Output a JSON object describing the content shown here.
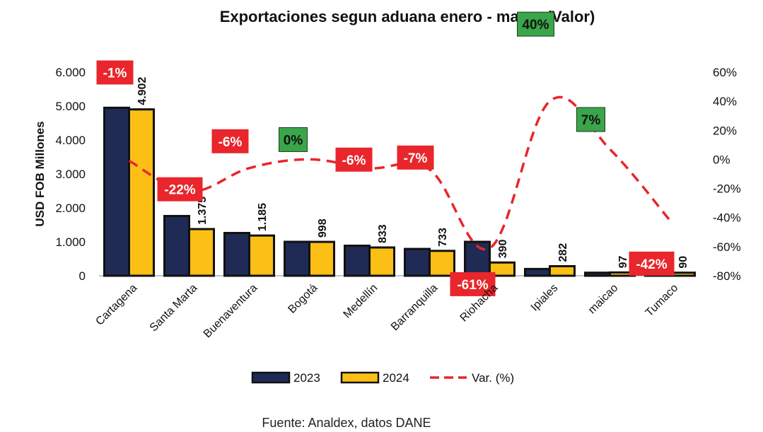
{
  "chart_data": {
    "type": "bar",
    "title": "Exportaciones segun aduana enero - marzo (Valor)",
    "ylabel": "USD FOB Millones",
    "ylim": [
      0,
      6000
    ],
    "y_ticks": [
      "0",
      "1.000",
      "2.000",
      "3.000",
      "4.000",
      "5.000",
      "6.000"
    ],
    "y2lim": [
      -80,
      60
    ],
    "y2_ticks": [
      "-80%",
      "-60%",
      "-40%",
      "-20%",
      "0%",
      "20%",
      "40%",
      "60%"
    ],
    "categories": [
      "Cartagena",
      "Santa Marta",
      "Buenaventura",
      "Bogotá",
      "Medellín",
      "Barranquilla",
      "Riohacha",
      "Ipiales",
      "maicao",
      "Tumaco"
    ],
    "series": [
      {
        "name": "2023",
        "color": "#1f2a55",
        "values": [
          4950,
          1760,
          1260,
          1000,
          885,
          790,
          1000,
          200,
          90,
          155
        ]
      },
      {
        "name": "2024",
        "color": "#fcbf16",
        "values": [
          4902,
          1375,
          1185,
          998,
          833,
          733,
          390,
          282,
          97,
          90
        ],
        "labels": [
          "4.902",
          "1.375",
          "1.185",
          "998",
          "833",
          "733",
          "390",
          "282",
          "97",
          "90"
        ]
      },
      {
        "name": "Var. (%)",
        "type": "line",
        "axis": "secondary",
        "color": "#e8262b",
        "values": [
          -1,
          -22,
          -6,
          0,
          -6,
          -7,
          -61,
          40,
          7,
          -42
        ],
        "labels": [
          "-1%",
          "-22%",
          "-6%",
          "0%",
          "-6%",
          "-7%",
          "-61%",
          "40%",
          "7%",
          "-42%"
        ]
      }
    ],
    "legend": [
      "2023",
      "2024",
      "Var. (%)"
    ],
    "legend_position": "bottom",
    "badge_colors": {
      "negative": "#e8262b",
      "positive": "#3aa54a"
    }
  },
  "source_note": "Fuente: Analdex, datos DANE"
}
